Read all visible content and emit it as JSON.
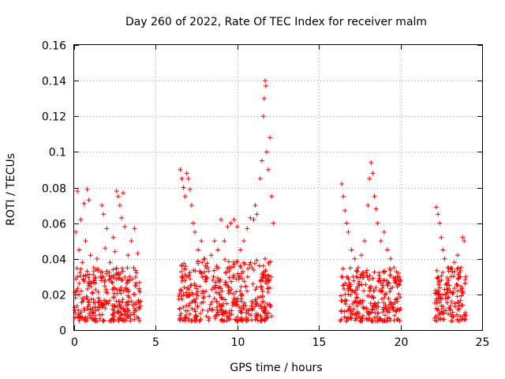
{
  "chart_data": {
    "type": "scatter",
    "title": "Day 260 of 2022, Rate Of TEC Index for receiver malm",
    "xlabel": "GPS time / hours",
    "ylabel": "ROTI / TECUs",
    "xlim": [
      0,
      25
    ],
    "ylim": [
      0,
      0.16
    ],
    "x_ticks": [
      0,
      5,
      10,
      15,
      20,
      25
    ],
    "x_tick_labels": [
      "0",
      "5",
      "10",
      "15",
      "20",
      "25"
    ],
    "y_ticks": [
      0,
      0.02,
      0.04,
      0.06,
      0.08,
      0.1,
      0.12,
      0.14,
      0.16
    ],
    "y_tick_labels": [
      "0",
      "0.02",
      "0.04",
      "0.06",
      "0.08",
      "0.1",
      "0.12",
      "0.14",
      "0.16"
    ],
    "grid": true,
    "marker": "plus",
    "color": "#ff0000",
    "series": [
      {
        "points": [
          [
            0.1,
            0.055
          ],
          [
            0.2,
            0.078
          ],
          [
            0.3,
            0.045
          ],
          [
            0.4,
            0.062
          ],
          [
            0.5,
            0.038
          ],
          [
            0.6,
            0.071
          ],
          [
            0.7,
            0.05
          ],
          [
            0.8,
            0.079
          ],
          [
            0.9,
            0.073
          ],
          [
            1.0,
            0.042
          ],
          [
            1.2,
            0.035
          ],
          [
            1.4,
            0.04
          ],
          [
            1.6,
            0.03
          ],
          [
            1.7,
            0.07
          ],
          [
            1.8,
            0.065
          ],
          [
            1.9,
            0.046
          ],
          [
            2.0,
            0.057
          ],
          [
            2.2,
            0.038
          ],
          [
            2.4,
            0.052
          ],
          [
            2.5,
            0.044
          ],
          [
            2.6,
            0.078
          ],
          [
            2.7,
            0.075
          ],
          [
            2.8,
            0.07
          ],
          [
            2.9,
            0.063
          ],
          [
            3.0,
            0.077
          ],
          [
            3.1,
            0.058
          ],
          [
            3.3,
            0.042
          ],
          [
            3.5,
            0.05
          ],
          [
            3.7,
            0.057
          ],
          [
            3.9,
            0.043
          ],
          [
            0.3,
            0.02
          ],
          [
            0.6,
            0.012
          ],
          [
            0.9,
            0.025
          ],
          [
            1.3,
            0.008
          ],
          [
            1.5,
            0.018
          ],
          [
            2.1,
            0.015
          ],
          [
            2.3,
            0.027
          ],
          [
            2.7,
            0.01
          ],
          [
            3.2,
            0.022
          ],
          [
            3.6,
            0.014
          ],
          [
            4.0,
            0.012
          ],
          [
            0.2,
            0.03
          ],
          [
            0.8,
            0.033
          ],
          [
            1.1,
            0.021
          ],
          [
            1.9,
            0.028
          ],
          [
            2.6,
            0.032
          ],
          [
            3.4,
            0.03
          ],
          [
            3.8,
            0.025
          ]
        ]
      },
      {
        "points": [
          [
            6.5,
            0.09
          ],
          [
            6.6,
            0.085
          ],
          [
            6.7,
            0.08
          ],
          [
            6.8,
            0.075
          ],
          [
            6.9,
            0.088
          ],
          [
            7.0,
            0.085
          ],
          [
            7.1,
            0.079
          ],
          [
            7.2,
            0.07
          ],
          [
            7.3,
            0.06
          ],
          [
            7.4,
            0.055
          ],
          [
            7.6,
            0.045
          ],
          [
            7.8,
            0.05
          ],
          [
            8.0,
            0.04
          ],
          [
            8.2,
            0.035
          ],
          [
            8.4,
            0.042
          ],
          [
            8.6,
            0.05
          ],
          [
            8.8,
            0.045
          ],
          [
            9.0,
            0.062
          ],
          [
            9.2,
            0.05
          ],
          [
            9.4,
            0.058
          ],
          [
            9.6,
            0.06
          ],
          [
            9.8,
            0.062
          ],
          [
            10.0,
            0.058
          ],
          [
            10.2,
            0.045
          ],
          [
            10.4,
            0.05
          ],
          [
            10.6,
            0.057
          ],
          [
            10.8,
            0.063
          ],
          [
            11.0,
            0.062
          ],
          [
            11.1,
            0.07
          ],
          [
            11.2,
            0.065
          ],
          [
            11.4,
            0.085
          ],
          [
            11.5,
            0.095
          ],
          [
            11.6,
            0.12
          ],
          [
            11.65,
            0.13
          ],
          [
            11.7,
            0.14
          ],
          [
            11.75,
            0.137
          ],
          [
            11.8,
            0.1
          ],
          [
            11.9,
            0.09
          ],
          [
            12.0,
            0.108
          ],
          [
            12.1,
            0.075
          ],
          [
            12.2,
            0.06
          ],
          [
            6.7,
            0.02
          ],
          [
            7.1,
            0.015
          ],
          [
            7.5,
            0.008
          ],
          [
            7.9,
            0.018
          ],
          [
            8.3,
            0.012
          ],
          [
            8.7,
            0.025
          ],
          [
            9.1,
            0.01
          ],
          [
            9.5,
            0.022
          ],
          [
            9.9,
            0.014
          ],
          [
            10.3,
            0.02
          ],
          [
            10.7,
            0.009
          ],
          [
            11.1,
            0.017
          ],
          [
            11.5,
            0.023
          ],
          [
            11.9,
            0.028
          ],
          [
            6.9,
            0.03
          ],
          [
            7.7,
            0.033
          ],
          [
            8.5,
            0.028
          ],
          [
            9.3,
            0.032
          ],
          [
            10.1,
            0.03
          ],
          [
            10.9,
            0.035
          ],
          [
            11.7,
            0.04
          ]
        ]
      },
      {
        "points": [
          [
            16.4,
            0.082
          ],
          [
            16.5,
            0.075
          ],
          [
            16.6,
            0.067
          ],
          [
            16.7,
            0.06
          ],
          [
            16.8,
            0.055
          ],
          [
            17.0,
            0.045
          ],
          [
            17.2,
            0.04
          ],
          [
            17.4,
            0.035
          ],
          [
            17.6,
            0.042
          ],
          [
            17.8,
            0.05
          ],
          [
            18.0,
            0.07
          ],
          [
            18.1,
            0.085
          ],
          [
            18.2,
            0.094
          ],
          [
            18.3,
            0.088
          ],
          [
            18.4,
            0.075
          ],
          [
            18.5,
            0.068
          ],
          [
            18.6,
            0.06
          ],
          [
            18.8,
            0.05
          ],
          [
            19.0,
            0.055
          ],
          [
            19.2,
            0.045
          ],
          [
            19.4,
            0.04
          ],
          [
            19.6,
            0.035
          ],
          [
            19.8,
            0.03
          ],
          [
            20.0,
            0.028
          ],
          [
            16.6,
            0.02
          ],
          [
            16.9,
            0.012
          ],
          [
            17.3,
            0.018
          ],
          [
            17.7,
            0.008
          ],
          [
            18.1,
            0.022
          ],
          [
            18.5,
            0.014
          ],
          [
            18.9,
            0.025
          ],
          [
            19.3,
            0.01
          ],
          [
            19.7,
            0.017
          ],
          [
            20.0,
            0.012
          ],
          [
            17.1,
            0.03
          ],
          [
            17.9,
            0.032
          ],
          [
            18.7,
            0.028
          ],
          [
            19.5,
            0.024
          ]
        ]
      },
      {
        "points": [
          [
            22.2,
            0.069
          ],
          [
            22.3,
            0.065
          ],
          [
            22.4,
            0.06
          ],
          [
            22.5,
            0.052
          ],
          [
            22.6,
            0.045
          ],
          [
            22.7,
            0.04
          ],
          [
            22.9,
            0.035
          ],
          [
            23.1,
            0.03
          ],
          [
            23.3,
            0.038
          ],
          [
            23.5,
            0.042
          ],
          [
            23.7,
            0.035
          ],
          [
            23.8,
            0.052
          ],
          [
            23.9,
            0.05
          ],
          [
            24.0,
            0.03
          ],
          [
            22.3,
            0.02
          ],
          [
            22.6,
            0.012
          ],
          [
            22.9,
            0.018
          ],
          [
            23.2,
            0.01
          ],
          [
            23.5,
            0.022
          ],
          [
            23.8,
            0.014
          ],
          [
            24.0,
            0.008
          ],
          [
            22.5,
            0.028
          ],
          [
            23.0,
            0.025
          ],
          [
            23.6,
            0.03
          ]
        ]
      }
    ],
    "dense_bands": [
      {
        "x_range": [
          0.0,
          4.1
        ],
        "y_range": [
          0.005,
          0.035
        ]
      },
      {
        "x_range": [
          6.4,
          12.1
        ],
        "y_range": [
          0.005,
          0.04
        ]
      },
      {
        "x_range": [
          16.3,
          20.0
        ],
        "y_range": [
          0.005,
          0.035
        ]
      },
      {
        "x_range": [
          22.1,
          24.0
        ],
        "y_range": [
          0.005,
          0.035
        ]
      }
    ]
  }
}
